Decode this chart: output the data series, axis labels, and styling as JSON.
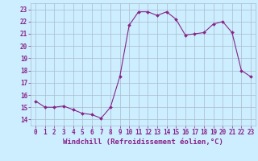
{
  "hours": [
    0,
    1,
    2,
    3,
    4,
    5,
    6,
    7,
    8,
    9,
    10,
    11,
    12,
    13,
    14,
    15,
    16,
    17,
    18,
    19,
    20,
    21,
    22,
    23
  ],
  "values": [
    15.5,
    15.0,
    15.0,
    15.1,
    14.8,
    14.5,
    14.4,
    14.1,
    15.0,
    17.5,
    21.7,
    22.8,
    22.8,
    22.5,
    22.8,
    22.2,
    20.9,
    21.0,
    21.1,
    21.8,
    22.0,
    21.1,
    18.0,
    17.5
  ],
  "line_color": "#882288",
  "marker": "D",
  "marker_size": 2.0,
  "line_width": 0.8,
  "bg_color": "#cceeff",
  "grid_color": "#aabbcc",
  "xlabel": "Windchill (Refroidissement éolien,°C)",
  "xlabel_color": "#882288",
  "xlabel_fontsize": 6.5,
  "tick_color": "#882288",
  "tick_fontsize": 5.5,
  "ylim": [
    13.5,
    23.5
  ],
  "yticks": [
    14,
    15,
    16,
    17,
    18,
    19,
    20,
    21,
    22,
    23
  ],
  "xlim": [
    -0.5,
    23.5
  ],
  "xticks": [
    0,
    1,
    2,
    3,
    4,
    5,
    6,
    7,
    8,
    9,
    10,
    11,
    12,
    13,
    14,
    15,
    16,
    17,
    18,
    19,
    20,
    21,
    22,
    23
  ]
}
